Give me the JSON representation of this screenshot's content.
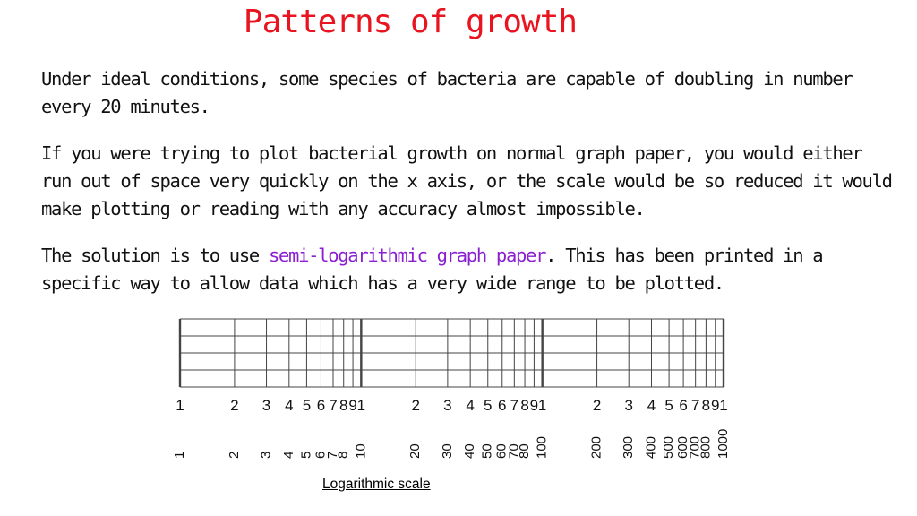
{
  "title": "Patterns of growth",
  "paragraphs": {
    "p1": "Under ideal conditions, some species of bacteria are capable of doubling in number every 20 minutes.",
    "p2": "If you were trying to plot bacterial growth on normal graph paper, you would either run out of space very quickly on the x axis, or the scale would be so reduced it would make plotting or reading with any accuracy almost impossible.",
    "p3_before": "The solution is to use ",
    "p3_highlight": "semi-logarithmic graph paper",
    "p3_after": ". This has been printed in a specific way to allow data which has a very wide range to be plotted."
  },
  "colors": {
    "title": "#e8141f",
    "highlight": "#8a1fd1",
    "grid": "#444444"
  },
  "caption": "Logarithmic scale",
  "chart_data": {
    "type": "log-scale-grid",
    "scale": "log10",
    "cycles": 3,
    "range": [
      1,
      1000
    ],
    "horizontal_lines": 5,
    "cycle_tick_labels": [
      "1",
      "2",
      "3",
      "4",
      "5",
      "6",
      "7",
      "8",
      "9",
      "1",
      "2",
      "3",
      "4",
      "5",
      "6",
      "7",
      "8",
      "9",
      "1",
      "2",
      "3",
      "4",
      "5",
      "6",
      "7",
      "8",
      "9",
      "1"
    ],
    "cycle_tick_values": [
      1,
      2,
      3,
      4,
      5,
      6,
      7,
      8,
      9,
      10,
      20,
      30,
      40,
      50,
      60,
      70,
      80,
      90,
      100,
      200,
      300,
      400,
      500,
      600,
      700,
      800,
      900,
      1000
    ],
    "value_labels": [
      {
        "value": 1,
        "text": "1"
      },
      {
        "value": 2,
        "text": "2"
      },
      {
        "value": 3,
        "text": "3"
      },
      {
        "value": 4,
        "text": "4"
      },
      {
        "value": 5,
        "text": "5"
      },
      {
        "value": 6,
        "text": "6"
      },
      {
        "value": 7,
        "text": "7"
      },
      {
        "value": 8,
        "text": "8"
      },
      {
        "value": 10,
        "text": "10"
      },
      {
        "value": 20,
        "text": "20"
      },
      {
        "value": 30,
        "text": "30"
      },
      {
        "value": 40,
        "text": "40"
      },
      {
        "value": 50,
        "text": "50"
      },
      {
        "value": 60,
        "text": "60"
      },
      {
        "value": 70,
        "text": "70"
      },
      {
        "value": 80,
        "text": "80"
      },
      {
        "value": 100,
        "text": "100"
      },
      {
        "value": 200,
        "text": "200"
      },
      {
        "value": 300,
        "text": "300"
      },
      {
        "value": 400,
        "text": "400"
      },
      {
        "value": 500,
        "text": "500"
      },
      {
        "value": 600,
        "text": "600"
      },
      {
        "value": 700,
        "text": "700"
      },
      {
        "value": 800,
        "text": "800"
      },
      {
        "value": 1000,
        "text": "1000"
      }
    ]
  }
}
